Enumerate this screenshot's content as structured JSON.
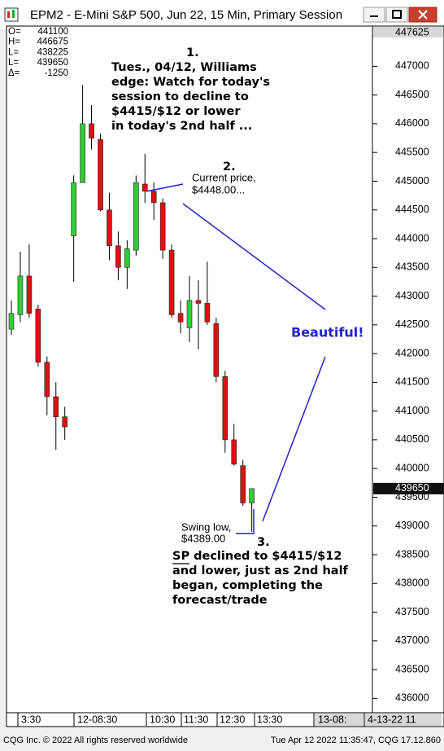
{
  "window_title": "EPM2 - E-Mini S&P 500, Jun 22, 15 Min, Primary Session",
  "footer": {
    "left": "CQG Inc. © 2022 All rights reserved worldwide",
    "right": "Tue Apr 12 2022 11:35:47, CQG 17.12.860"
  },
  "chart_data": {
    "type": "candlestick",
    "info_box": [
      {
        "label": "O=",
        "value": 441100
      },
      {
        "label": "H=",
        "value": 446675
      },
      {
        "label": "L=",
        "value": 438225
      },
      {
        "label": "L=",
        "value": 439650
      },
      {
        "label": "Δ=",
        "value": -1250
      }
    ],
    "x_labels": [
      "3:30",
      "12-08:30",
      "10:30",
      "11:30",
      "12:30",
      "13:30",
      "13-08:",
      "4-13-22 11"
    ],
    "categories": [
      null,
      null,
      null,
      null,
      null,
      null,
      null,
      null,
      null,
      null,
      null,
      null,
      null,
      null,
      null,
      null,
      null,
      null,
      null,
      null,
      null,
      null,
      null,
      null,
      null,
      null,
      null,
      null
    ],
    "series": [
      {
        "up_color": "#33cc33",
        "down_color": "#dd1111",
        "open": [
          442425,
          442675,
          443350,
          442775,
          441850,
          441250,
          440900,
          444050,
          444975,
          446000,
          445725,
          444500,
          443875,
          443500,
          443800,
          444950,
          444825,
          444625,
          443800,
          442700,
          442450,
          442925,
          442875,
          442525,
          441600,
          440500,
          440050,
          439400
        ],
        "high": [
          442925,
          443775,
          443900,
          442850,
          441950,
          441500,
          441075,
          445100,
          446675,
          446325,
          445825,
          444800,
          444125,
          443975,
          445100,
          445475,
          444975,
          444700,
          443900,
          442925,
          443350,
          443275,
          443600,
          442625,
          441700,
          440775,
          440150,
          439650
        ],
        "low": [
          442325,
          442550,
          442625,
          441775,
          440925,
          440325,
          440500,
          443250,
          444975,
          445550,
          444475,
          443625,
          443275,
          443125,
          443700,
          444625,
          444325,
          443650,
          442625,
          442350,
          442200,
          442075,
          442500,
          441500,
          440275,
          440050,
          439350,
          438900
        ],
        "close": [
          442700,
          443350,
          442700,
          441850,
          441250,
          440900,
          440725,
          444975,
          446000,
          445750,
          444500,
          443875,
          443500,
          443825,
          444975,
          444825,
          444625,
          443800,
          442675,
          442550,
          442925,
          442875,
          442550,
          441600,
          440500,
          440075,
          439400,
          439650
        ]
      }
    ],
    "ylim": [
      435750,
      447700
    ],
    "yticks": [
      436000,
      436500,
      437000,
      437500,
      438000,
      438500,
      439000,
      439500,
      440000,
      440500,
      441000,
      441500,
      442000,
      442500,
      443000,
      443500,
      444000,
      444500,
      445000,
      445500,
      446000,
      446500,
      447000
    ],
    "high_marker": 447625,
    "last_price": 439650,
    "annotations": {
      "note1": {
        "number": "1.",
        "lines": [
          "Tues., 04/12, Williams",
          "edge: Watch for today's",
          "session to decline to",
          "$4415/$12 or lower",
          "in today's 2nd half ..."
        ]
      },
      "note2": {
        "number": "2.",
        "lines": [
          "Current price,",
          "$4448.00..."
        ]
      },
      "beautiful": "Beautiful!",
      "swing_low": [
        "Swing low,",
        "$4389.00"
      ],
      "note3": {
        "number": "3.",
        "lines": [
          "SP declined to $4415/$12",
          "and lower, just as 2nd half",
          "began, completing the",
          "forecast/trade"
        ]
      }
    }
  }
}
